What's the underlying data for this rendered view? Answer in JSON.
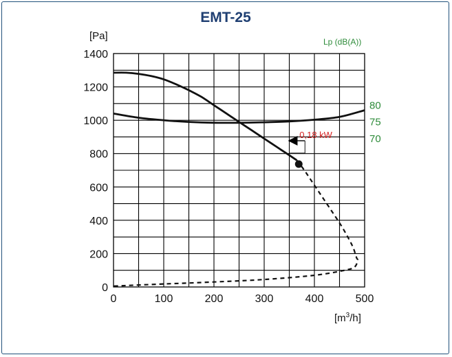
{
  "chart_data": {
    "type": "line",
    "title": "EMT-25",
    "ylabel": "[Pa]",
    "xlabel": "[m³/h]",
    "xlim": [
      0,
      500
    ],
    "ylim": [
      0,
      1400
    ],
    "x_ticks": [
      0,
      100,
      200,
      300,
      400,
      500
    ],
    "y_ticks": [
      0,
      200,
      400,
      600,
      800,
      1000,
      1200,
      1400
    ],
    "grid": true,
    "secondary_axis": {
      "label": "Lp (dB(A))",
      "ticks": [
        {
          "label": "80",
          "y": 1090
        },
        {
          "label": "75",
          "y": 990
        },
        {
          "label": "70",
          "y": 890
        }
      ]
    },
    "series": [
      {
        "style": "solid",
        "x": [
          0,
          25,
          50,
          75,
          100,
          125,
          150,
          175,
          200,
          225,
          250,
          275,
          300,
          325,
          350,
          365
        ],
        "y": [
          1285,
          1285,
          1278,
          1265,
          1245,
          1215,
          1180,
          1140,
          1090,
          1040,
          990,
          940,
          890,
          840,
          790,
          760
        ]
      },
      {
        "style": "dashed",
        "x": [
          365,
          380,
          400,
          420,
          440,
          455,
          470,
          478,
          484,
          486,
          480,
          460,
          400,
          300,
          200,
          100,
          50,
          0
        ],
        "y": [
          760,
          700,
          610,
          520,
          430,
          360,
          280,
          230,
          175,
          160,
          120,
          100,
          70,
          45,
          30,
          18,
          12,
          5
        ]
      },
      {
        "style": "solid",
        "x": [
          0,
          50,
          100,
          150,
          200,
          250,
          300,
          350,
          400,
          450,
          500
        ],
        "y": [
          1040,
          1015,
          1000,
          990,
          985,
          985,
          988,
          993,
          1003,
          1020,
          1060
        ]
      }
    ],
    "annotations": [
      {
        "text": "0,18 kW",
        "x": 362,
        "y": 770,
        "arrow_to": [
          362,
          910
        ]
      }
    ]
  }
}
